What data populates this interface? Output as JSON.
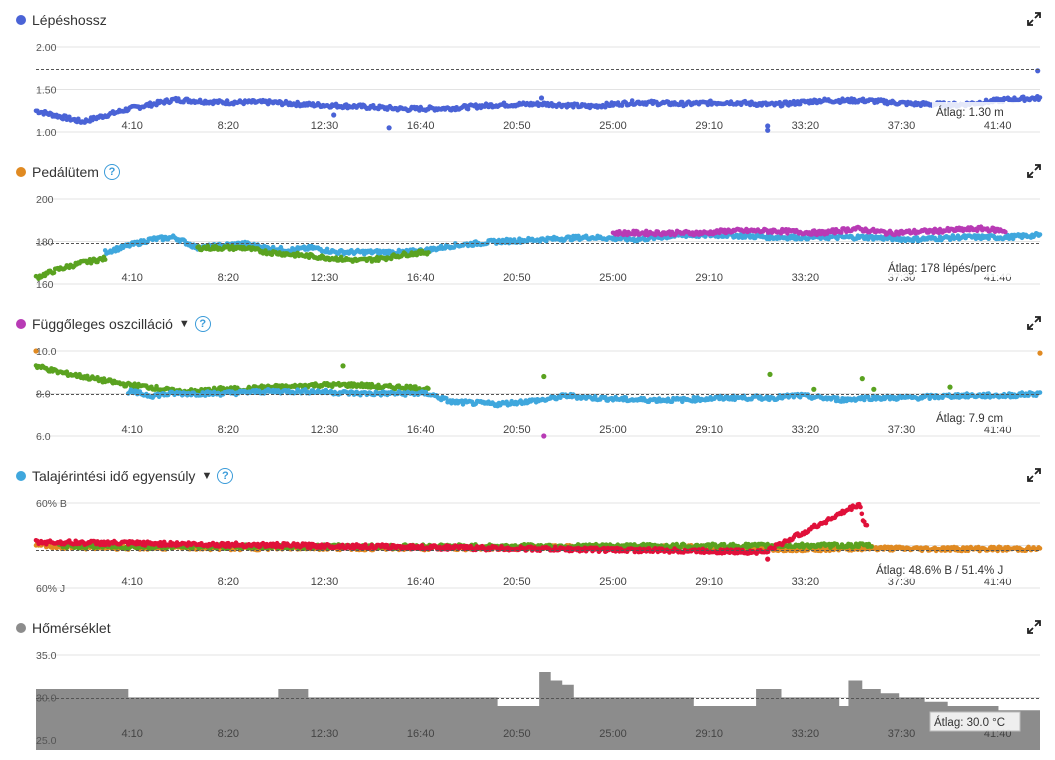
{
  "x_ticks": [
    "4:10",
    "8:20",
    "12:30",
    "16:40",
    "20:50",
    "25:00",
    "29:10",
    "33:20",
    "37:30",
    "41:40"
  ],
  "colors": {
    "blue": "#4a63d6",
    "lightblue": "#3fa7dd",
    "green": "#5aa220",
    "purple": "#b83bb5",
    "orange": "#e08a22",
    "red": "#e0113a",
    "gray": "#8c8c8c"
  },
  "panels": [
    {
      "title": "Lépéshossz",
      "dot_color": "#4a63d6",
      "help": false,
      "dropdown": false,
      "y_labels": [
        "2.00",
        "1.50",
        "1.00"
      ],
      "avg_label": "Átlag: 1.30 m"
    },
    {
      "title": "Pedálütem",
      "dot_color": "#e08a22",
      "help": true,
      "dropdown": false,
      "y_labels": [
        "200",
        "180",
        "160"
      ],
      "avg_label": "Átlag: 178 lépés/perc"
    },
    {
      "title": "Függőleges oszcilláció",
      "dot_color": "#b83bb5",
      "help": true,
      "dropdown": true,
      "y_labels": [
        "10.0",
        "8.0",
        "6.0"
      ],
      "avg_label": "Átlag: 7.9 cm"
    },
    {
      "title": "Talajérintési idő egyensúly",
      "dot_color": "#3fa7dd",
      "help": true,
      "dropdown": true,
      "y_labels": [
        "60% B",
        "",
        "60% J"
      ],
      "avg_label": "Átlag: 48.6% B / 51.4% J"
    },
    {
      "title": "Hőmérséklet",
      "dot_color": "#8c8c8c",
      "help": false,
      "dropdown": false,
      "y_labels": [
        "35.0",
        "30.0",
        "25.0"
      ],
      "avg_label": "Átlag: 30.0 °C"
    }
  ],
  "help_glyph": "?",
  "dropdown_glyph": "▼",
  "chart_data": [
    {
      "type": "scatter",
      "title": "Lépéshossz",
      "unit": "m",
      "ylim": [
        1.0,
        2.0
      ],
      "average": 1.3,
      "x_unit": "min",
      "x_range": [
        0,
        43.5
      ],
      "series": [
        {
          "color": "#4a63d6",
          "profile": [
            [
              0,
              1.25
            ],
            [
              2,
              1.12
            ],
            [
              4,
              1.27
            ],
            [
              6,
              1.38
            ],
            [
              8,
              1.35
            ],
            [
              10,
              1.35
            ],
            [
              12,
              1.32
            ],
            [
              14,
              1.3
            ],
            [
              16,
              1.27
            ],
            [
              18,
              1.28
            ],
            [
              20,
              1.32
            ],
            [
              22,
              1.33
            ],
            [
              24,
              1.3
            ],
            [
              26,
              1.35
            ],
            [
              28,
              1.33
            ],
            [
              30,
              1.35
            ],
            [
              32,
              1.32
            ],
            [
              34,
              1.37
            ],
            [
              36,
              1.37
            ],
            [
              38,
              1.33
            ],
            [
              40,
              1.32
            ],
            [
              42,
              1.38
            ],
            [
              43.5,
              1.4
            ]
          ]
        }
      ],
      "outliers": [
        [
          31.7,
          1.02
        ],
        [
          31.7,
          1.07
        ],
        [
          12.9,
          1.2
        ],
        [
          15.3,
          1.05
        ],
        [
          21.9,
          1.4
        ],
        [
          43.4,
          1.72
        ]
      ]
    },
    {
      "type": "scatter",
      "title": "Pedálütem",
      "unit": "lépés/perc",
      "ylim": [
        160,
        200
      ],
      "average": 178,
      "series": [
        {
          "color": "#5aa220",
          "label_hint": "low cadence",
          "profile": [
            [
              0,
              163
            ],
            [
              1,
              167
            ],
            [
              2,
              170
            ],
            [
              3,
              172
            ]
          ]
        },
        {
          "color": "#3fa7dd",
          "profile": [
            [
              3,
              175
            ],
            [
              4,
              178
            ],
            [
              5,
              181
            ],
            [
              6,
              182
            ],
            [
              7,
              177
            ],
            [
              8,
              178
            ],
            [
              9,
              179
            ],
            [
              10,
              177
            ],
            [
              11,
              176
            ],
            [
              12,
              177
            ],
            [
              13,
              175
            ],
            [
              14,
              175
            ],
            [
              16,
              175
            ],
            [
              17,
              176
            ],
            [
              18,
              178
            ],
            [
              20,
              180
            ],
            [
              22,
              181
            ],
            [
              24,
              182
            ],
            [
              26,
              181
            ],
            [
              28,
              183
            ],
            [
              30,
              183
            ],
            [
              32,
              182
            ],
            [
              34,
              182
            ],
            [
              36,
              182
            ],
            [
              38,
              181
            ],
            [
              40,
              182
            ],
            [
              42,
              182
            ],
            [
              43.5,
              183
            ]
          ]
        },
        {
          "color": "#5aa220",
          "profile": [
            [
              7,
              177
            ],
            [
              8,
              177
            ],
            [
              9,
              177
            ],
            [
              10,
              175
            ],
            [
              11,
              174
            ],
            [
              12,
              173
            ],
            [
              13,
              172
            ],
            [
              14,
              171
            ],
            [
              15,
              172
            ],
            [
              16,
              174
            ],
            [
              17,
              175
            ]
          ]
        },
        {
          "color": "#b83bb5",
          "profile": [
            [
              25,
              184
            ],
            [
              27,
              184
            ],
            [
              29,
              184
            ],
            [
              30,
              185
            ],
            [
              32,
              185
            ],
            [
              34,
              184
            ],
            [
              35.5,
              186
            ],
            [
              37,
              184
            ],
            [
              39,
              185
            ],
            [
              41,
              186
            ],
            [
              42,
              185
            ]
          ]
        }
      ]
    },
    {
      "type": "scatter",
      "title": "Függőleges oszcilláció",
      "unit": "cm",
      "ylim": [
        6.0,
        10.0
      ],
      "average": 7.9,
      "series": [
        {
          "color": "#5aa220",
          "profile": [
            [
              0,
              9.3
            ],
            [
              1,
              9.0
            ],
            [
              2,
              8.8
            ],
            [
              3,
              8.6
            ],
            [
              4,
              8.4
            ],
            [
              5,
              8.3
            ],
            [
              6,
              8.1
            ],
            [
              7,
              8.1
            ],
            [
              8,
              8.2
            ],
            [
              9,
              8.2
            ],
            [
              10,
              8.3
            ],
            [
              11,
              8.3
            ],
            [
              12,
              8.4
            ],
            [
              13,
              8.4
            ],
            [
              14,
              8.4
            ],
            [
              15,
              8.3
            ],
            [
              16,
              8.3
            ],
            [
              17,
              8.2
            ]
          ]
        },
        {
          "color": "#3fa7dd",
          "profile": [
            [
              4,
              8.1
            ],
            [
              5,
              7.9
            ],
            [
              6,
              8.0
            ],
            [
              7,
              8.0
            ],
            [
              8,
              8.0
            ],
            [
              10,
              8.1
            ],
            [
              12,
              8.1
            ],
            [
              14,
              8.0
            ],
            [
              17,
              8.0
            ],
            [
              18,
              7.6
            ],
            [
              20,
              7.5
            ],
            [
              22,
              7.7
            ],
            [
              23,
              7.9
            ],
            [
              24,
              7.8
            ],
            [
              26,
              7.7
            ],
            [
              28,
              7.7
            ],
            [
              30,
              7.8
            ],
            [
              32,
              7.8
            ],
            [
              33,
              7.9
            ],
            [
              34,
              7.8
            ],
            [
              35,
              7.7
            ],
            [
              36,
              7.8
            ],
            [
              38,
              7.8
            ],
            [
              40,
              7.9
            ],
            [
              42,
              7.9
            ],
            [
              43.5,
              8.0
            ]
          ]
        }
      ],
      "outliers": [
        [
          0,
          10.0
        ],
        [
          22,
          6.0
        ],
        [
          43.5,
          9.9
        ],
        [
          13.3,
          9.3
        ],
        [
          22,
          8.8
        ],
        [
          31.8,
          8.9
        ],
        [
          35.8,
          8.7
        ],
        [
          33.7,
          8.2
        ],
        [
          36.3,
          8.2
        ],
        [
          39.6,
          8.3
        ]
      ]
    },
    {
      "type": "scatter",
      "title": "Talajérintési idő egyensúly",
      "unit": "% B / % J",
      "ylim": [
        "60% J",
        "60% B"
      ],
      "average": "48.6% B / 51.4% J",
      "series": [
        {
          "color": "#e08a22",
          "profile": [
            [
              0,
              50.4
            ],
            [
              1,
              49.7
            ],
            [
              2,
              49.6
            ],
            [
              4,
              49.5
            ],
            [
              6,
              49.5
            ],
            [
              8,
              49.4
            ],
            [
              10,
              49.4
            ],
            [
              12,
              49.5
            ],
            [
              14,
              49.4
            ],
            [
              16,
              49.4
            ],
            [
              18,
              49.4
            ],
            [
              20,
              49.4
            ],
            [
              22,
              49.5
            ],
            [
              24,
              49.6
            ],
            [
              26,
              49.6
            ],
            [
              28,
              49.6
            ],
            [
              30,
              49.4
            ],
            [
              32,
              49.2
            ],
            [
              34,
              49.2
            ],
            [
              35,
              49.3
            ],
            [
              36,
              49.4
            ],
            [
              38,
              49.2
            ],
            [
              40,
              49.2
            ],
            [
              42,
              49.2
            ],
            [
              43.5,
              49.2
            ]
          ]
        },
        {
          "color": "#5aa220",
          "profile": [
            [
              1,
              50.0
            ],
            [
              2,
              49.8
            ],
            [
              3,
              49.8
            ],
            [
              4,
              49.7
            ],
            [
              22.5,
              49.8
            ],
            [
              36.2,
              50.0
            ]
          ]
        },
        {
          "color": "#e0113a",
          "profile": [
            [
              0,
              50.8
            ],
            [
              31.7,
              48.5
            ],
            [
              31.7,
              48.8
            ],
            [
              35.7,
              59.8
            ],
            [
              35.8,
              56.5
            ],
            [
              35.9,
              55.5
            ],
            [
              36.0,
              54.5
            ]
          ]
        }
      ],
      "outliers": [
        [
          31.7,
          46.8
        ]
      ]
    },
    {
      "type": "area",
      "title": "Hőmérséklet",
      "unit": "°C",
      "ylim": [
        25.0,
        35.0
      ],
      "average": 30.0,
      "steps": [
        [
          0,
          31.0
        ],
        [
          4,
          30.0
        ],
        [
          10.5,
          31.0
        ],
        [
          11.8,
          30.0
        ],
        [
          20,
          29.0
        ],
        [
          21.8,
          33.0
        ],
        [
          22.3,
          32.0
        ],
        [
          22.8,
          31.5
        ],
        [
          23.3,
          30.0
        ],
        [
          28.5,
          29.0
        ],
        [
          31.2,
          31.0
        ],
        [
          32.3,
          30.0
        ],
        [
          34.8,
          29.0
        ],
        [
          35.2,
          32.0
        ],
        [
          35.8,
          31.0
        ],
        [
          36.6,
          30.5
        ],
        [
          37.4,
          30.0
        ],
        [
          38.5,
          29.5
        ],
        [
          39.5,
          29.0
        ],
        [
          41.7,
          28.5
        ],
        [
          43.5,
          28.5
        ]
      ]
    }
  ]
}
